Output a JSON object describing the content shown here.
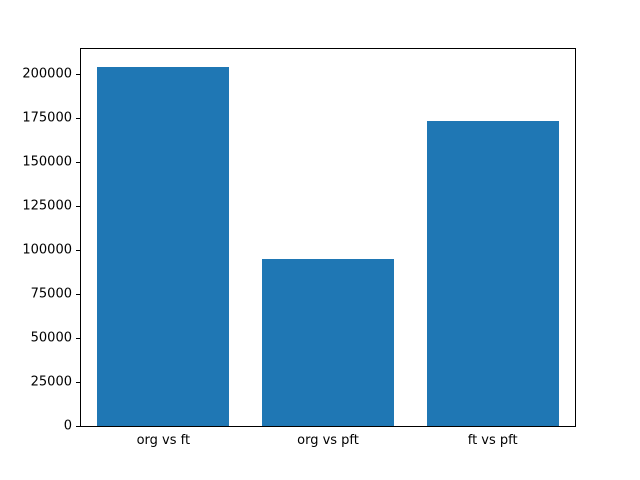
{
  "chart_data": {
    "type": "bar",
    "title": "",
    "xlabel": "",
    "ylabel": "",
    "categories": [
      "org vs ft",
      "org vs pft",
      "ft vs pft"
    ],
    "values": [
      204000,
      95000,
      173000
    ],
    "ylim": [
      0,
      214000
    ],
    "yticks": [
      0,
      25000,
      50000,
      75000,
      100000,
      125000,
      150000,
      175000,
      200000
    ],
    "bar_color": "#1f77b4",
    "background_color": "#ffffff",
    "spine_color": "#000000",
    "grid": false,
    "legend": null,
    "bar_width_fraction": 0.8
  }
}
